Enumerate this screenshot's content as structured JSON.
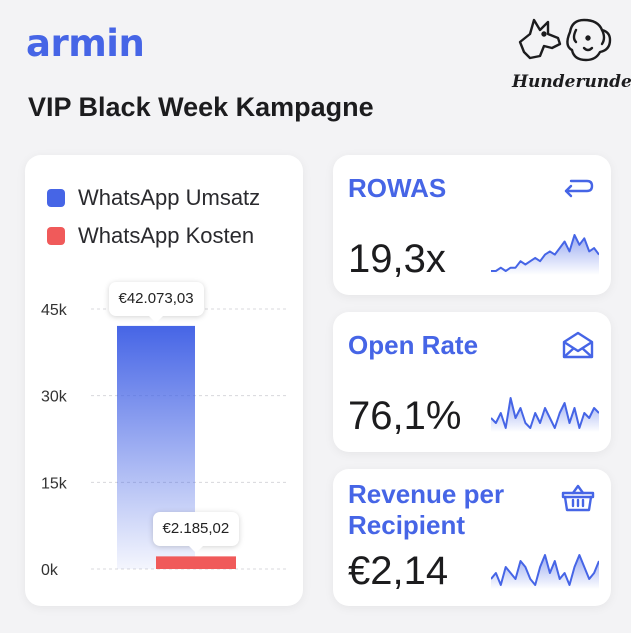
{
  "header": {
    "logo": "armin",
    "title": "VIP Black Week Kampagne",
    "brand": "Hunderunde"
  },
  "chart_data": {
    "type": "bar",
    "series": [
      {
        "name": "WhatsApp Umsatz",
        "values": [
          42073.03
        ],
        "label": "€42.073,03",
        "color": "#4665e6"
      },
      {
        "name": "WhatsApp Kosten",
        "values": [
          2185.02
        ],
        "label": "€2.185,02",
        "color": "#f05a5a"
      }
    ],
    "yticks": [
      "0k",
      "15k",
      "30k",
      "45k"
    ],
    "ytick_values": [
      0,
      15000,
      30000,
      45000
    ],
    "ylim": [
      0,
      45000
    ],
    "grid": true,
    "legend_placement": "top-left"
  },
  "kpis": [
    {
      "title": "ROWAS",
      "value": "19,3x",
      "icon": "return-arrow-icon",
      "spark": [
        3,
        3,
        4,
        3,
        4,
        4,
        6,
        5,
        6,
        7,
        6,
        8,
        9,
        8,
        10,
        12,
        9,
        14,
        11,
        13,
        9,
        10,
        8
      ]
    },
    {
      "title": "Open Rate",
      "value": "76,1%",
      "icon": "envelope-icon",
      "spark": [
        4,
        3,
        5,
        2,
        8,
        4,
        6,
        3,
        2,
        5,
        3,
        6,
        4,
        2,
        5,
        7,
        3,
        6,
        2,
        5,
        4,
        6,
        5
      ]
    },
    {
      "title": "Revenue per Recipient",
      "title_line1": "Revenue per",
      "title_line2": "Recipient",
      "value": "€2,14",
      "icon": "shopping-basket-icon",
      "spark": [
        3,
        4,
        2,
        5,
        4,
        3,
        6,
        5,
        3,
        2,
        5,
        7,
        4,
        6,
        3,
        4,
        2,
        5,
        7,
        5,
        3,
        4,
        6
      ]
    }
  ],
  "colors": {
    "accent": "#4665e6",
    "cost": "#f05a5a"
  }
}
